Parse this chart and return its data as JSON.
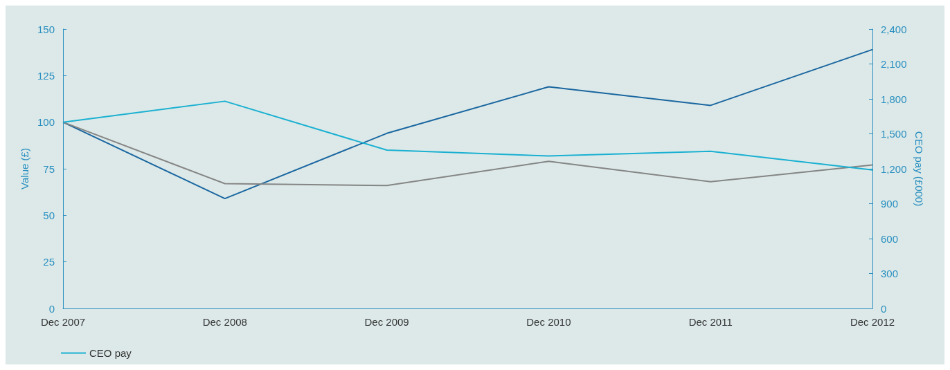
{
  "chart_data": {
    "type": "line",
    "ylabel": "Value (£)",
    "y2label": "CEO pay (£000)",
    "categories": [
      "Dec 2007",
      "Dec 2008",
      "Dec 2009",
      "Dec 2010",
      "Dec 2011",
      "Dec 2012"
    ],
    "series": [
      {
        "color": "#1a66a0",
        "values": [
          100,
          59,
          94,
          119,
          109,
          139
        ]
      },
      {
        "color": "#858585",
        "values": [
          100,
          67,
          66,
          79,
          68,
          77
        ]
      },
      {
        "name": "CEO pay",
        "color": "#1ab0d2",
        "axis": "y2",
        "values": [
          1600,
          1780,
          1360,
          1310,
          1350,
          1190
        ]
      }
    ],
    "ylim": [
      0,
      150
    ],
    "yticks": [
      0,
      25,
      50,
      75,
      100,
      125,
      150
    ],
    "y2lim": [
      0,
      2400
    ],
    "y2ticks": [
      0,
      300,
      600,
      900,
      {
        "value": 1200,
        "label": "1,200"
      },
      {
        "value": 1500,
        "label": "1,500"
      },
      {
        "value": 1800,
        "label": "1,800"
      },
      {
        "value": 2100,
        "label": "2,100"
      },
      {
        "value": 2400,
        "label": "2,400"
      }
    ],
    "grid": false,
    "legend": "bottom left",
    "marker": "none",
    "line_style": "solid"
  }
}
